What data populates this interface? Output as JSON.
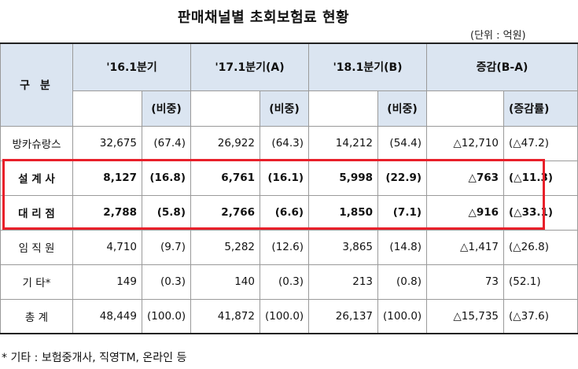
{
  "title": "판매채널별 초회보험료 현황",
  "unit": "(단위 : 억원)",
  "header": {
    "category": "구 분",
    "periods": [
      "'16.1분기",
      "'17.1분기(A)",
      "'18.1분기(B)",
      "증감(B-A)"
    ],
    "share_label": "(비중)",
    "change_label": "(증감률)"
  },
  "rows": [
    {
      "label": "방카슈랑스",
      "v1": "32,675",
      "s1": "(67.4)",
      "v2": "26,922",
      "s2": "(64.3)",
      "v3": "14,212",
      "s3": "(54.4)",
      "v4": "△12,710",
      "s4": "(△47.2)"
    },
    {
      "label": "설 계 사",
      "v1": "8,127",
      "s1": "(16.8)",
      "v2": "6,761",
      "s2": "(16.1)",
      "v3": "5,998",
      "s3": "(22.9)",
      "v4": "△763",
      "s4": "(△11.3)"
    },
    {
      "label": "대 리 점",
      "v1": "2,788",
      "s1": "(5.8)",
      "v2": "2,766",
      "s2": "(6.6)",
      "v3": "1,850",
      "s3": "(7.1)",
      "v4": "△916",
      "s4": "(△33.1)"
    },
    {
      "label": "임 직 원",
      "v1": "4,710",
      "s1": "(9.7)",
      "v2": "5,282",
      "s2": "(12.6)",
      "v3": "3,865",
      "s3": "(14.8)",
      "v4": "△1,417",
      "s4": "(△26.8)"
    },
    {
      "label": "기 타*",
      "v1": "149",
      "s1": "(0.3)",
      "v2": "140",
      "s2": "(0.3)",
      "v3": "213",
      "s3": "(0.8)",
      "v4": "73",
      "s4": "(52.1)"
    },
    {
      "label": "총 계",
      "v1": "48,449",
      "s1": "(100.0)",
      "v2": "41,872",
      "s2": "(100.0)",
      "v3": "26,137",
      "s3": "(100.0)",
      "v4": "△15,735",
      "s4": "(△37.6)"
    }
  ],
  "footnote": "* 기타 : 보험중개사, 직영TM, 온라인 등",
  "colors": {
    "header_bg": "#dbe5f1",
    "highlight_border": "#e8202a"
  }
}
